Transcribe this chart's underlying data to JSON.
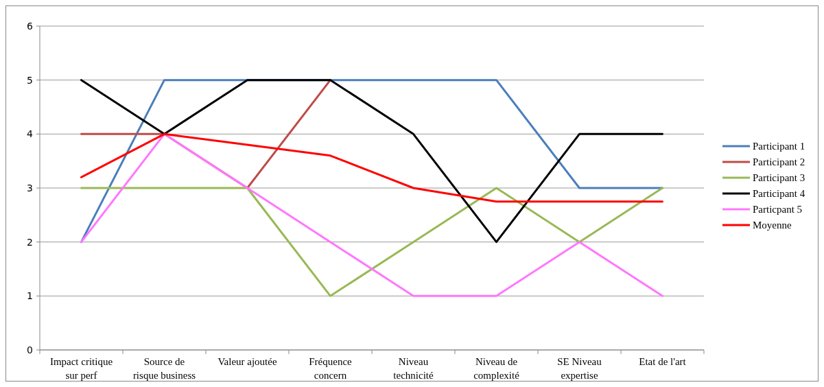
{
  "chart_data": {
    "type": "line",
    "categories": [
      "Impact critique\nsur perf",
      "Source de\nrisque business",
      "Valeur ajoutée",
      "Fréquence\nconcern",
      "Niveau\ntechnicité",
      "Niveau de\ncomplexité",
      "SE Niveau\nexpertise",
      "Etat de l'art"
    ],
    "series": [
      {
        "name": "Participant 1",
        "color": "#4a7ebb",
        "values": [
          2,
          5,
          5,
          5,
          5,
          5,
          3,
          3
        ]
      },
      {
        "name": "Participant 2",
        "color": "#be4b48",
        "values": [
          4,
          4,
          3,
          5,
          null,
          null,
          null,
          null
        ]
      },
      {
        "name": "Participant 3",
        "color": "#98b954",
        "values": [
          3,
          3,
          3,
          1,
          2,
          3,
          2,
          3
        ]
      },
      {
        "name": "Participant 4",
        "color": "#000000",
        "values": [
          5,
          4,
          5,
          5,
          4,
          2,
          4,
          4
        ]
      },
      {
        "name": "Particpant 5",
        "color": "#ff77ff",
        "values": [
          2,
          4,
          3,
          2,
          1,
          1,
          2,
          1
        ]
      },
      {
        "name": "Moyenne",
        "color": "#ff0000",
        "values": [
          3.2,
          4,
          3.8,
          3.6,
          3,
          2.75,
          2.75,
          2.75
        ]
      }
    ],
    "ylim": [
      0,
      6
    ],
    "yticks": [
      0,
      1,
      2,
      3,
      4,
      5,
      6
    ],
    "grid": "y",
    "legend": "right",
    "marker": "none",
    "line_style": "solid"
  }
}
